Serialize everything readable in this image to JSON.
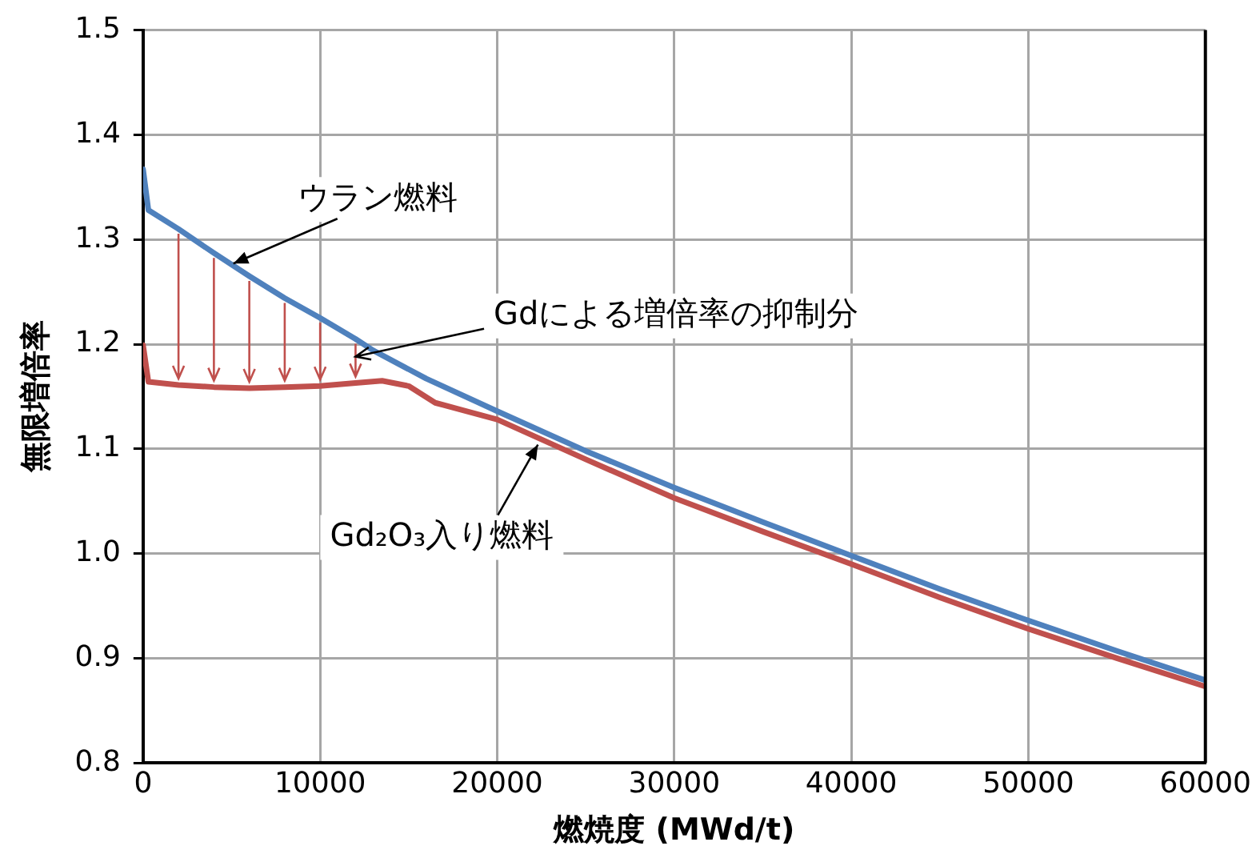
{
  "chart_data": {
    "type": "line",
    "xlabel": "燃焼度 (MWd/t)",
    "ylabel": "無限増倍率",
    "xlim": [
      0,
      60000
    ],
    "xticks": [
      0,
      10000,
      20000,
      30000,
      40000,
      50000,
      60000
    ],
    "ylim": [
      0.8,
      1.5
    ],
    "yticks": [
      {
        "value": 0.8,
        "label": "0.8"
      },
      {
        "value": 0.9,
        "label": "0.9"
      },
      {
        "value": 1,
        "label": "1.0"
      },
      {
        "value": 1.1,
        "label": "1.1"
      },
      {
        "value": 1.2,
        "label": "1.2"
      },
      {
        "value": 1.3,
        "label": "1.3"
      },
      {
        "value": 1.4,
        "label": "1.4"
      },
      {
        "value": 1.5,
        "label": "1.5"
      }
    ],
    "grid": true,
    "legend": false,
    "marker": "none",
    "line_style": "solid",
    "series": [
      {
        "color": "#4f81bd",
        "x": [
          0,
          300,
          2000,
          4000,
          6000,
          8000,
          10000,
          12000,
          13000,
          16000,
          20000,
          25000,
          30000,
          35000,
          40000,
          45000,
          50000,
          55000,
          60000
        ],
        "values": [
          1.367,
          1.328,
          1.31,
          1.287,
          1.265,
          1.244,
          1.225,
          1.205,
          1.194,
          1.167,
          1.136,
          1.098,
          1.063,
          1.03,
          0.998,
          0.966,
          0.936,
          0.907,
          0.879
        ]
      },
      {
        "color": "#c0504d",
        "x": [
          0,
          300,
          2000,
          4000,
          6000,
          8000,
          10000,
          12000,
          13500,
          15000,
          16500,
          20000,
          25000,
          30000,
          35000,
          40000,
          45000,
          50000,
          55000,
          60000
        ],
        "values": [
          1.199,
          1.164,
          1.161,
          1.159,
          1.158,
          1.159,
          1.16,
          1.163,
          1.165,
          1.16,
          1.144,
          1.128,
          1.09,
          1.053,
          1.021,
          0.99,
          0.958,
          0.928,
          0.9,
          0.873
        ]
      }
    ],
    "annotations": [
      {
        "text": "ウラン燃料",
        "x": 5100,
        "y": 1.277
      },
      "Gdによる増倍率の抑制分",
      {
        "text": "Gd₂O₃入り燃料",
        "x": 22300,
        "y": 1.104
      }
    ]
  }
}
